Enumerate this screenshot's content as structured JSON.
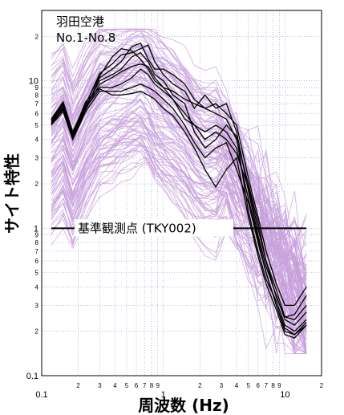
{
  "chart_data": {
    "type": "line",
    "title": "",
    "annotation_lines": [
      "羽田空港",
      "No.1-No.8"
    ],
    "xlabel": "周波数 (Hz)",
    "ylabel": "サイト特性",
    "xscale": "log",
    "yscale": "log",
    "xlim": [
      0.1,
      20
    ],
    "ylim": [
      0.1,
      30
    ],
    "x_major_ticks": [
      {
        "value": 0.1,
        "label": "0.1"
      },
      {
        "value": 1,
        "label": "1"
      },
      {
        "value": 10,
        "label": "10"
      }
    ],
    "x_minor_ticks": [
      {
        "value": 0.2,
        "label": "2"
      },
      {
        "value": 0.3,
        "label": "3"
      },
      {
        "value": 0.4,
        "label": "4"
      },
      {
        "value": 0.5,
        "label": "5"
      },
      {
        "value": 0.6,
        "label": "6"
      },
      {
        "value": 0.7,
        "label": "7"
      },
      {
        "value": 0.8,
        "label": "8"
      },
      {
        "value": 0.9,
        "label": "9"
      },
      {
        "value": 2,
        "label": "2"
      },
      {
        "value": 3,
        "label": "3"
      },
      {
        "value": 4,
        "label": "4"
      },
      {
        "value": 5,
        "label": "5"
      },
      {
        "value": 6,
        "label": "6"
      },
      {
        "value": 7,
        "label": "7"
      },
      {
        "value": 8,
        "label": "8"
      },
      {
        "value": 9,
        "label": "9"
      },
      {
        "value": 20,
        "label": "2"
      }
    ],
    "y_major_ticks": [
      {
        "value": 0.1,
        "label": "0.1"
      },
      {
        "value": 1,
        "label": "1"
      },
      {
        "value": 10,
        "label": "10"
      }
    ],
    "y_minor_ticks": [
      {
        "value": 0.2,
        "label": "2"
      },
      {
        "value": 0.3,
        "label": "3"
      },
      {
        "value": 0.4,
        "label": "4"
      },
      {
        "value": 0.5,
        "label": "5"
      },
      {
        "value": 0.6,
        "label": "6"
      },
      {
        "value": 0.7,
        "label": "7"
      },
      {
        "value": 0.8,
        "label": "8"
      },
      {
        "value": 0.9,
        "label": "9"
      },
      {
        "value": 2,
        "label": "2"
      },
      {
        "value": 3,
        "label": "3"
      },
      {
        "value": 4,
        "label": "4"
      },
      {
        "value": 5,
        "label": "5"
      },
      {
        "value": 6,
        "label": "6"
      },
      {
        "value": 7,
        "label": "7"
      },
      {
        "value": 8,
        "label": "8"
      },
      {
        "value": 9,
        "label": "9"
      },
      {
        "value": 20,
        "label": "2"
      }
    ],
    "grid": true,
    "reference": {
      "label": "基準観測点 (TKY002)",
      "y": 1,
      "x_start": 0.12,
      "x_end": 15
    },
    "frequencies": [
      0.12,
      0.15,
      0.18,
      0.23,
      0.3,
      0.38,
      0.45,
      0.55,
      0.65,
      0.75,
      0.85,
      1.0,
      1.2,
      1.5,
      1.8,
      2.2,
      2.7,
      3.3,
      4.0,
      5.0,
      6.0,
      7.0,
      8.5,
      10.0,
      12.0,
      15.0
    ],
    "background_series_color": "#c8a0dc",
    "highlight_series_color": "#000000",
    "highlight_series": [
      {
        "values": [
          5.0,
          6.5,
          4.1,
          6.5,
          10.5,
          12.0,
          13.5,
          17.0,
          18.0,
          14.0,
          12.0,
          12.0,
          11.0,
          9.5,
          7.5,
          6.5,
          6.0,
          5.5,
          4.0,
          2.0,
          1.1,
          0.6,
          0.38,
          0.25,
          0.24,
          0.3
        ]
      },
      {
        "values": [
          5.3,
          6.8,
          4.3,
          6.9,
          11.2,
          13.0,
          15.0,
          15.5,
          16.5,
          17.5,
          13.5,
          11.0,
          9.5,
          8.5,
          6.5,
          8.0,
          6.5,
          7.0,
          4.5,
          1.8,
          0.9,
          0.55,
          0.35,
          0.24,
          0.22,
          0.27
        ]
      },
      {
        "values": [
          5.2,
          6.6,
          4.2,
          6.7,
          10.0,
          11.0,
          12.0,
          14.5,
          15.5,
          13.5,
          11.0,
          10.0,
          8.0,
          7.0,
          4.5,
          3.5,
          4.0,
          5.0,
          4.2,
          1.3,
          0.7,
          0.45,
          0.32,
          0.22,
          0.2,
          0.24
        ]
      },
      {
        "values": [
          5.1,
          6.4,
          4.0,
          6.4,
          9.5,
          10.5,
          11.5,
          12.5,
          13.0,
          12.5,
          10.5,
          9.0,
          7.5,
          6.0,
          5.0,
          4.5,
          5.0,
          4.5,
          3.5,
          1.6,
          0.85,
          0.5,
          0.3,
          0.21,
          0.19,
          0.23
        ]
      },
      {
        "values": [
          5.4,
          7.0,
          4.4,
          7.2,
          9.0,
          9.0,
          9.5,
          10.5,
          12.0,
          11.0,
          9.5,
          8.5,
          7.5,
          5.5,
          5.0,
          4.0,
          4.5,
          4.0,
          3.2,
          1.9,
          1.0,
          0.6,
          0.34,
          0.25,
          0.26,
          0.35
        ]
      },
      {
        "values": [
          5.0,
          6.2,
          4.0,
          6.2,
          8.5,
          8.5,
          8.5,
          9.0,
          9.5,
          9.0,
          8.5,
          7.5,
          6.5,
          5.0,
          3.8,
          3.0,
          3.5,
          3.8,
          2.5,
          1.5,
          0.8,
          0.5,
          0.3,
          0.2,
          0.19,
          0.22
        ]
      },
      {
        "values": [
          5.2,
          6.5,
          4.2,
          6.6,
          8.8,
          8.0,
          8.0,
          8.2,
          8.5,
          8.0,
          7.5,
          6.5,
          5.8,
          4.5,
          3.5,
          2.5,
          1.9,
          2.5,
          3.0,
          1.2,
          0.65,
          0.42,
          0.28,
          0.19,
          0.18,
          0.22
        ]
      },
      {
        "values": [
          5.5,
          7.2,
          4.5,
          7.0,
          10.8,
          14.5,
          16.5,
          16.0,
          14.0,
          12.0,
          10.0,
          9.0,
          8.5,
          7.5,
          7.0,
          6.5,
          7.0,
          6.0,
          5.0,
          2.2,
          1.2,
          0.7,
          0.42,
          0.3,
          0.3,
          0.4
        ]
      }
    ]
  }
}
